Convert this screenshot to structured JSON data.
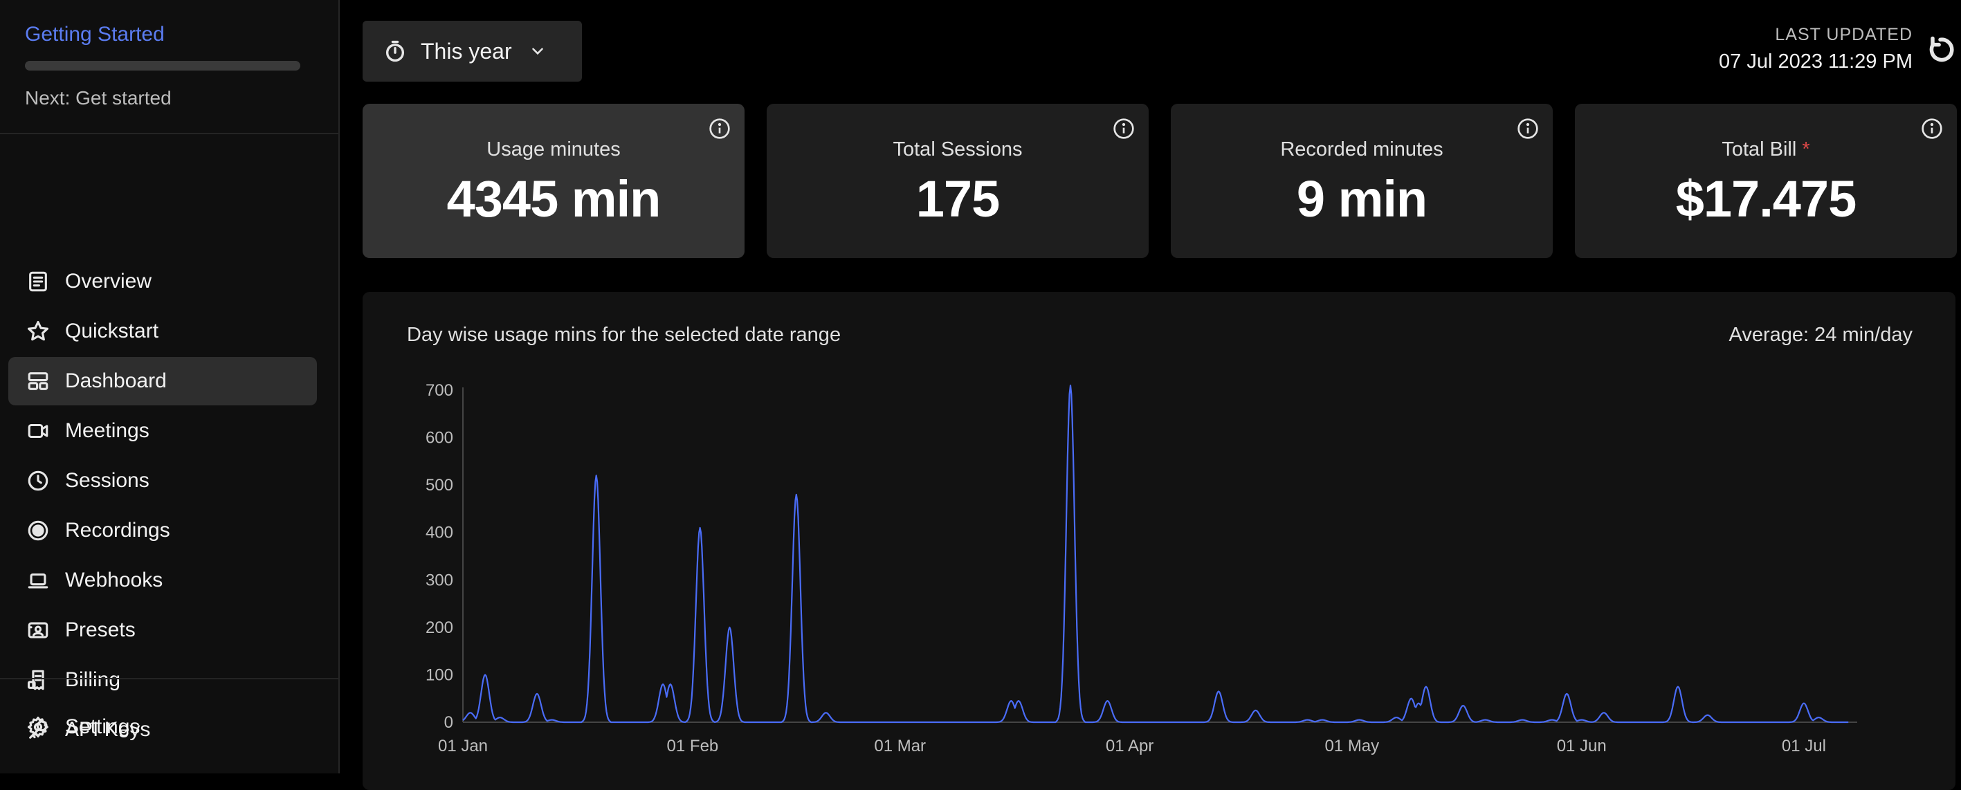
{
  "sidebar": {
    "getting_started": {
      "title": "Getting Started",
      "progress": 0,
      "next": "Next: Get started"
    },
    "items": [
      {
        "label": "Overview",
        "icon": "document-list-icon",
        "active": false
      },
      {
        "label": "Quickstart",
        "icon": "star-icon",
        "active": false
      },
      {
        "label": "Dashboard",
        "icon": "dashboard-layout-icon",
        "active": true
      },
      {
        "label": "Meetings",
        "icon": "video-camera-icon",
        "active": false
      },
      {
        "label": "Sessions",
        "icon": "clock-icon",
        "active": false
      },
      {
        "label": "Recordings",
        "icon": "record-icon",
        "active": false
      },
      {
        "label": "Webhooks",
        "icon": "laptop-icon",
        "active": false
      },
      {
        "label": "Presets",
        "icon": "preset-card-icon",
        "active": false
      },
      {
        "label": "Billing",
        "icon": "receipt-icon",
        "active": false
      },
      {
        "label": "API Keys",
        "icon": "key-icon",
        "active": false
      }
    ],
    "settings": {
      "label": "Settings",
      "icon": "gear-icon"
    }
  },
  "header": {
    "range_label": "This year",
    "last_updated_label": "LAST UPDATED",
    "last_updated_time": "07 Jul 2023 11:29 PM"
  },
  "cards": [
    {
      "label": "Usage minutes",
      "value": "4345 min",
      "required_mark": ""
    },
    {
      "label": "Total Sessions",
      "value": "175",
      "required_mark": ""
    },
    {
      "label": "Recorded minutes",
      "value": "9 min",
      "required_mark": ""
    },
    {
      "label": "Total Bill",
      "value": "$17.475",
      "required_mark": "*"
    }
  ],
  "chart": {
    "title": "Day wise usage mins for the selected date range",
    "average": "Average: 24 min/day"
  },
  "chart_data": {
    "type": "line",
    "title": "Day wise usage mins for the selected date range",
    "xlabel": "",
    "ylabel": "",
    "ylim": [
      0,
      700
    ],
    "yticks": [
      0,
      100,
      200,
      300,
      400,
      500,
      600,
      700
    ],
    "xlim": [
      "2023-01-01",
      "2023-07-07"
    ],
    "xticks": [
      "01 Jan",
      "01 Feb",
      "01 Mar",
      "01 Apr",
      "01 May",
      "01 Jun",
      "01 Jul"
    ],
    "xtick_dates": [
      "2023-01-01",
      "2023-02-01",
      "2023-03-01",
      "2023-04-01",
      "2023-05-01",
      "2023-06-01",
      "2023-07-01"
    ],
    "line_color": "#4a6cf7",
    "grid": false,
    "series": [
      {
        "name": "",
        "points": [
          [
            "2023-01-02",
            20
          ],
          [
            "2023-01-04",
            100
          ],
          [
            "2023-01-06",
            10
          ],
          [
            "2023-01-11",
            60
          ],
          [
            "2023-01-13",
            5
          ],
          [
            "2023-01-19",
            520
          ],
          [
            "2023-01-28",
            80
          ],
          [
            "2023-01-29",
            80
          ],
          [
            "2023-02-02",
            410
          ],
          [
            "2023-02-06",
            200
          ],
          [
            "2023-02-15",
            480
          ],
          [
            "2023-02-19",
            20
          ],
          [
            "2023-03-16",
            45
          ],
          [
            "2023-03-17",
            45
          ],
          [
            "2023-03-24",
            710
          ],
          [
            "2023-03-29",
            45
          ],
          [
            "2023-04-13",
            65
          ],
          [
            "2023-04-18",
            25
          ],
          [
            "2023-04-25",
            5
          ],
          [
            "2023-04-27",
            5
          ],
          [
            "2023-05-02",
            5
          ],
          [
            "2023-05-07",
            10
          ],
          [
            "2023-05-09",
            50
          ],
          [
            "2023-05-10",
            40
          ],
          [
            "2023-05-11",
            75
          ],
          [
            "2023-05-16",
            35
          ],
          [
            "2023-05-19",
            5
          ],
          [
            "2023-05-24",
            5
          ],
          [
            "2023-05-28",
            5
          ],
          [
            "2023-05-30",
            60
          ],
          [
            "2023-06-01",
            5
          ],
          [
            "2023-06-04",
            20
          ],
          [
            "2023-06-14",
            75
          ],
          [
            "2023-06-18",
            15
          ],
          [
            "2023-07-01",
            40
          ],
          [
            "2023-07-03",
            10
          ]
        ]
      }
    ]
  }
}
